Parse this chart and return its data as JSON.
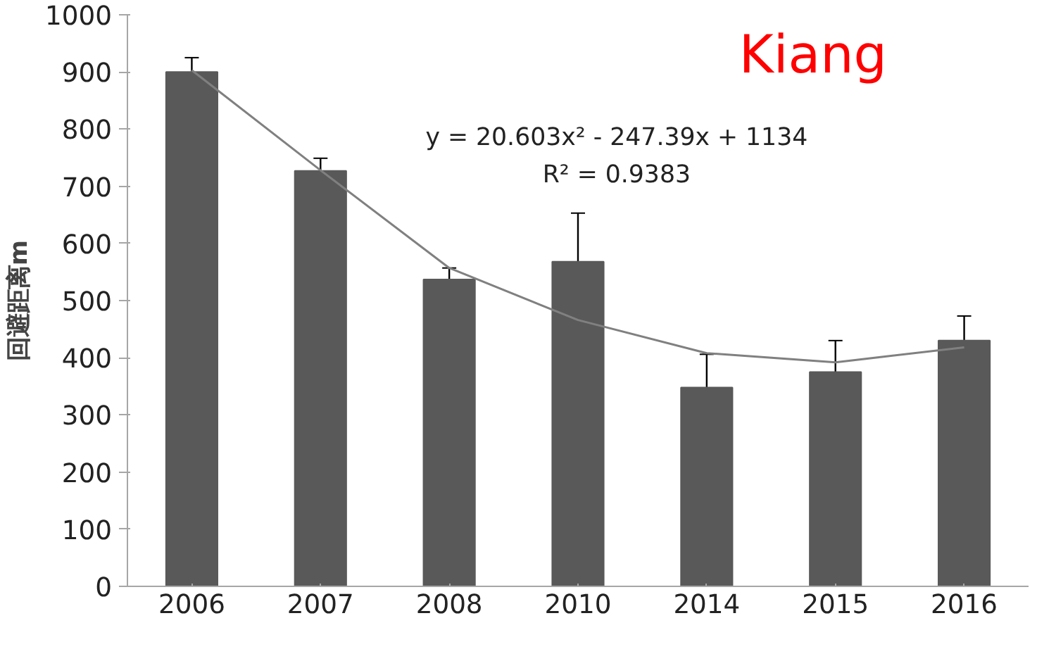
{
  "chart_data": {
    "type": "bar",
    "title": "Kiang",
    "ylabel": "回避距离m",
    "categories": [
      "2006",
      "2007",
      "2008",
      "2010",
      "2014",
      "2015",
      "2016"
    ],
    "series": [
      {
        "color": "#595959",
        "values": [
          900,
          727,
          537,
          568,
          348,
          375,
          430
        ],
        "errors": [
          25,
          22,
          20,
          85,
          58,
          55,
          43
        ]
      },
      {
        "type": "line",
        "color": "#808080",
        "values": [
          903,
          728,
          557,
          466,
          408,
          392,
          418
        ]
      }
    ],
    "ylim": [
      0,
      1000
    ],
    "yticks": [
      0,
      100,
      200,
      300,
      400,
      500,
      600,
      700,
      800,
      900,
      1000
    ],
    "annotations": [
      "y = 20.603x² - 247.39x + 1134",
      "R² = 0.9383"
    ],
    "grid": false
  }
}
